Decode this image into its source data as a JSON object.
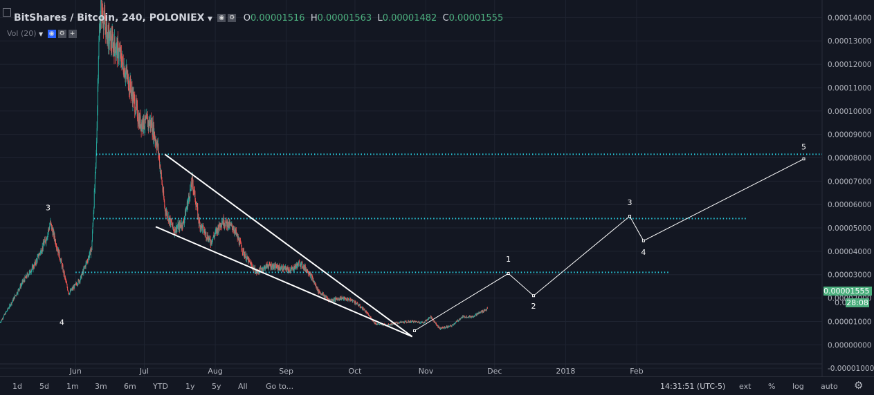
{
  "header": {
    "symbol": "BitShares / Bitcoin, 240, POLONIEX",
    "o_label": "O",
    "o_value": "0.00001516",
    "h_label": "H",
    "h_value": "0.00001563",
    "l_label": "L",
    "l_value": "0.00001482",
    "c_label": "C",
    "c_value": "0.00001555",
    "vol_label": "Vol (20)"
  },
  "price_tags": {
    "last": "0.00001555",
    "prev": "0.000",
    "countdown": "28:08"
  },
  "toolbar": {
    "ranges": [
      "1d",
      "5d",
      "1m",
      "3m",
      "6m",
      "YTD",
      "1y",
      "5y",
      "All"
    ],
    "goto": "Go to...",
    "time": "14:31:51 (UTC-5)",
    "ext": "ext",
    "pct": "%",
    "log": "log",
    "auto": "auto"
  },
  "colors": {
    "bg": "#131722",
    "grid": "#1f2431",
    "up": "#26a69a",
    "down": "#ef5350",
    "level": "#29d3e6",
    "drawing": "#ffffff",
    "last_price": "#4caf7e"
  },
  "chart_data": {
    "type": "candlestick",
    "title": "BitShares / Bitcoin, 240, POLONIEX",
    "y_ticks": [
      "0.00014000",
      "0.00013000",
      "0.00012000",
      "0.00011000",
      "0.00010000",
      "0.00009000",
      "0.00008000",
      "0.00007000",
      "0.00006000",
      "0.00005000",
      "0.00004000",
      "0.00003000",
      "0.00002000",
      "0.00001000",
      "0.00000000",
      "-0.00001000"
    ],
    "y_tick_values": [
      0.00014,
      0.00013,
      0.00012,
      0.00011,
      0.0001,
      9e-05,
      8e-05,
      7e-05,
      6e-05,
      5e-05,
      4e-05,
      3e-05,
      2e-05,
      1e-05,
      0,
      -1e-05
    ],
    "ylim": [
      -1.35e-05,
      0.0001475
    ],
    "x_ticks": [
      "Jun",
      "Jul",
      "Aug",
      "Sep",
      "Oct",
      "Nov",
      "Dec",
      "2018",
      "Feb"
    ],
    "x_tick_dates": [
      "2017-06-01",
      "2017-07-01",
      "2017-08-01",
      "2017-09-01",
      "2017-10-01",
      "2017-11-01",
      "2017-12-01",
      "2018-01-01",
      "2018-02-01"
    ],
    "xlim": [
      "2017-04-29",
      "2018-04-23"
    ],
    "price_path": [
      [
        "2017-04-29",
        9.5e-06
      ],
      [
        "2017-05-04",
        1.8e-05
      ],
      [
        "2017-05-09",
        2.7e-05
      ],
      [
        "2017-05-14",
        3.4e-05
      ],
      [
        "2017-05-19",
        4.5e-05
      ],
      [
        "2017-05-21",
        5.2e-05
      ],
      [
        "2017-05-25",
        3.8e-05
      ],
      [
        "2017-05-29",
        2.2e-05
      ],
      [
        "2017-06-03",
        2.8e-05
      ],
      [
        "2017-06-08",
        4.1e-05
      ],
      [
        "2017-06-10",
        8e-05
      ],
      [
        "2017-06-11",
        0.000125
      ],
      [
        "2017-06-12",
        0.000145
      ],
      [
        "2017-06-15",
        0.000132
      ],
      [
        "2017-06-20",
        0.000125
      ],
      [
        "2017-06-25",
        0.00011
      ],
      [
        "2017-06-29",
        9.5e-05
      ],
      [
        "2017-07-04",
        9.5e-05
      ],
      [
        "2017-07-07",
        8.4e-05
      ],
      [
        "2017-07-10",
        5.8e-05
      ],
      [
        "2017-07-14",
        4.9e-05
      ],
      [
        "2017-07-18",
        5.2e-05
      ],
      [
        "2017-07-22",
        7e-05
      ],
      [
        "2017-07-25",
        5.2e-05
      ],
      [
        "2017-07-30",
        4.4e-05
      ],
      [
        "2017-08-04",
        5.3e-05
      ],
      [
        "2017-08-09",
        5e-05
      ],
      [
        "2017-08-14",
        3.8e-05
      ],
      [
        "2017-08-19",
        3.1e-05
      ],
      [
        "2017-08-24",
        3.4e-05
      ],
      [
        "2017-08-29",
        3.3e-05
      ],
      [
        "2017-09-03",
        3.2e-05
      ],
      [
        "2017-09-07",
        3.5e-05
      ],
      [
        "2017-09-11",
        3.1e-05
      ],
      [
        "2017-09-15",
        2.3e-05
      ],
      [
        "2017-09-20",
        1.9e-05
      ],
      [
        "2017-09-25",
        2e-05
      ],
      [
        "2017-09-30",
        1.9e-05
      ],
      [
        "2017-10-05",
        1.5e-05
      ],
      [
        "2017-10-10",
        9e-06
      ],
      [
        "2017-10-15",
        8.5e-06
      ],
      [
        "2017-10-20",
        9.5e-06
      ],
      [
        "2017-10-26",
        1e-05
      ],
      [
        "2017-10-31",
        9.5e-06
      ],
      [
        "2017-11-03",
        1.2e-05
      ],
      [
        "2017-11-07",
        7e-06
      ],
      [
        "2017-11-12",
        8e-06
      ],
      [
        "2017-11-17",
        1.2e-05
      ],
      [
        "2017-11-21",
        1.2e-05
      ],
      [
        "2017-11-25",
        1.4e-05
      ],
      [
        "2017-11-28",
        1.55e-05
      ]
    ],
    "levels": [
      {
        "y": 8.15e-05,
        "from": "2017-06-10",
        "to": "2018-04-23"
      },
      {
        "y": 5.4e-05,
        "from": "2017-06-09",
        "to": "2018-03-21"
      },
      {
        "y": 3.1e-05,
        "from": "2017-06-01",
        "to": "2018-02-15"
      }
    ],
    "trendlines": [
      {
        "from": [
          "2017-07-10",
          8.15e-05
        ],
        "to": [
          "2017-10-26",
          3.5e-06
        ]
      },
      {
        "from": [
          "2017-07-06",
          5.05e-05
        ],
        "to": [
          "2017-10-26",
          3.5e-06
        ]
      }
    ],
    "projection_path": [
      [
        "2017-10-27",
        6e-06
      ],
      [
        "2017-12-07",
        3.05e-05
      ],
      [
        "2017-12-18",
        2.1e-05
      ],
      [
        "2018-01-29",
        5.5e-05
      ],
      [
        "2018-02-04",
        4.45e-05
      ],
      [
        "2018-04-15",
        7.95e-05
      ]
    ],
    "wave_labels": [
      {
        "text": "3",
        "date": "2017-05-20",
        "y": 5.75e-05
      },
      {
        "text": "4",
        "date": "2017-05-26",
        "y": 8.5e-06
      },
      {
        "text": "1",
        "date": "2017-12-07",
        "y": 3.55e-05
      },
      {
        "text": "2",
        "date": "2017-12-18",
        "y": 1.55e-05
      },
      {
        "text": "3",
        "date": "2018-01-29",
        "y": 5.97e-05
      },
      {
        "text": "4",
        "date": "2018-02-04",
        "y": 3.85e-05
      },
      {
        "text": "5",
        "date": "2018-04-15",
        "y": 8.35e-05
      }
    ]
  }
}
